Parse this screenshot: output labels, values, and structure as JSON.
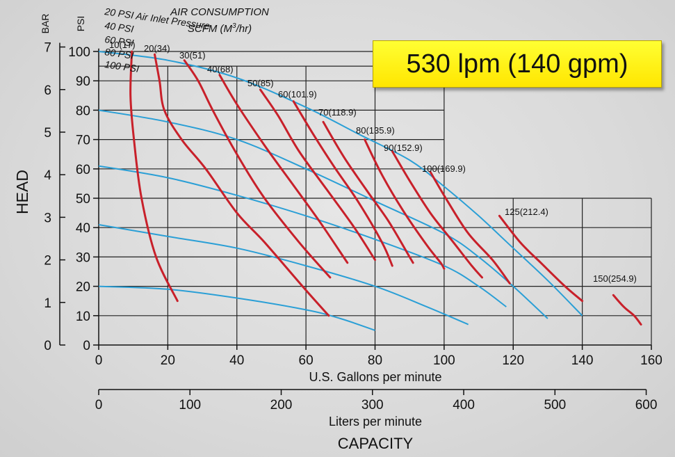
{
  "callout": {
    "text": "530 lpm (140 gpm)"
  },
  "chart_data": {
    "type": "line",
    "title": "AIR CONSUMPTION",
    "subtitle_prefix": "SCFM (M",
    "subtitle_sup": "3",
    "subtitle_suffix": "/hr)",
    "xlabel": "U.S. Gallons per minute",
    "x2label": "Liters per minute",
    "xtitle": "CAPACITY",
    "ylabel": "HEAD",
    "y_unit_bar": "BAR",
    "y_unit_psi": "PSI",
    "xlim": [
      0,
      160
    ],
    "ylim": [
      0,
      100
    ],
    "x_ticks": [
      0,
      20,
      40,
      60,
      80,
      100,
      120,
      140,
      160
    ],
    "x_tick_labels": [
      "0",
      "20",
      "40",
      "60",
      "80",
      "100",
      "120",
      "140",
      "160"
    ],
    "x2_ticks": [
      0,
      100,
      200,
      300,
      400,
      500,
      600
    ],
    "x2_tick_labels": [
      "0",
      "100",
      "200",
      "300",
      "400",
      "500",
      "600"
    ],
    "psi_ticks": [
      0,
      10,
      20,
      30,
      40,
      50,
      60,
      70,
      80,
      90,
      100
    ],
    "psi_tick_labels": [
      "0",
      "10",
      "20",
      "30",
      "40",
      "50",
      "60",
      "70",
      "80",
      "90",
      "100"
    ],
    "bar_ticks": [
      0,
      1,
      2,
      3,
      4,
      5,
      6,
      7
    ],
    "bar_tick_labels": [
      "0",
      "1",
      "2",
      "3",
      "4",
      "5",
      "6",
      "7"
    ],
    "grid": true,
    "colors": {
      "pressure": "#2a9fd6",
      "air": "#c8202a",
      "grid": "#222222"
    },
    "pressure_series": [
      {
        "name": "100 PSI",
        "x": [
          0,
          20,
          40,
          60,
          75,
          90,
          100,
          110,
          120,
          130,
          140
        ],
        "y": [
          100,
          97,
          91,
          81,
          72,
          63,
          54,
          44,
          33,
          22,
          10
        ]
      },
      {
        "name": "80 PSI",
        "x": [
          0,
          20,
          40,
          60,
          80,
          100,
          110,
          120,
          130
        ],
        "y": [
          80,
          76,
          70,
          60,
          49,
          38,
          30,
          20,
          9
        ]
      },
      {
        "name": "60 PSI",
        "x": [
          0,
          20,
          40,
          60,
          80,
          100,
          110,
          118
        ],
        "y": [
          61,
          57,
          51,
          44,
          36,
          27,
          20,
          13
        ]
      },
      {
        "name": "40 PSI",
        "x": [
          0,
          20,
          40,
          60,
          80,
          95,
          107
        ],
        "y": [
          41,
          37,
          33,
          27,
          20,
          13,
          7
        ]
      },
      {
        "name": "20 PSI Air Inlet Pressure",
        "x": [
          0,
          20,
          40,
          60,
          70,
          80
        ],
        "y": [
          20,
          19,
          16,
          12,
          9,
          5
        ]
      }
    ],
    "air_series": [
      {
        "name": "10(17)",
        "x": [
          9.6,
          9.2,
          10.2,
          12.4,
          16.6,
          22.8
        ],
        "y": [
          100,
          85,
          70,
          50,
          30,
          15
        ]
      },
      {
        "name": "20(34)",
        "x": [
          16.2,
          17.6,
          19,
          24,
          31,
          40,
          48,
          59,
          66.6
        ],
        "y": [
          99,
          90,
          80,
          70,
          60,
          45,
          35,
          20,
          10
        ]
      },
      {
        "name": "30(51)",
        "x": [
          24.8,
          28.8,
          33,
          40,
          48,
          58,
          67
        ],
        "y": [
          97,
          90,
          80,
          65,
          50,
          35,
          23
        ]
      },
      {
        "name": "40(68)",
        "x": [
          35,
          40,
          48,
          56,
          64,
          72
        ],
        "y": [
          92,
          82,
          68,
          55,
          42,
          28
        ]
      },
      {
        "name": "50(85)",
        "x": [
          46.8,
          52,
          58,
          66,
          74,
          80
        ],
        "y": [
          87,
          78,
          66,
          53,
          40,
          29
        ]
      },
      {
        "name": "60(101.9)",
        "x": [
          56.4,
          62,
          68,
          75,
          82,
          85
        ],
        "y": [
          83,
          72,
          61,
          49,
          35,
          27
        ]
      },
      {
        "name": "70(118.9)",
        "x": [
          65,
          71,
          78,
          84,
          90,
          91
        ],
        "y": [
          76,
          64,
          52,
          42,
          30,
          28
        ]
      },
      {
        "name": "80(135.9)",
        "x": [
          77,
          82,
          88,
          95,
          99,
          100
        ],
        "y": [
          70,
          58,
          46,
          34,
          28,
          26
        ]
      },
      {
        "name": "90(152.9)",
        "x": [
          85,
          90,
          96,
          102,
          108,
          111
        ],
        "y": [
          66,
          56,
          45,
          36,
          27,
          23
        ]
      },
      {
        "name": "100(169.9)",
        "x": [
          96,
          101,
          107,
          114,
          119
        ],
        "y": [
          59,
          49,
          38,
          29,
          21
        ]
      },
      {
        "name": "125(212.4)",
        "x": [
          116,
          122,
          128,
          135,
          140
        ],
        "y": [
          44,
          35,
          28,
          20,
          15
        ]
      },
      {
        "name": "150(254.9)",
        "x": [
          149,
          152,
          155,
          157
        ],
        "y": [
          17,
          13,
          10,
          7
        ]
      }
    ],
    "air_labels": [
      "10(17)",
      "20(34)",
      "30(51)",
      "40(68)",
      "50(85)",
      "60(101.9)",
      "70(118.9)",
      "80(135.9)",
      "90(152.9)",
      "100(169.9)",
      "125(212.4)",
      "150(254.9)"
    ],
    "pressure_labels": [
      "100 PSI",
      "80 PSI",
      "60 PSI",
      "40 PSI",
      "20 PSI Air Inlet Pressure"
    ]
  }
}
